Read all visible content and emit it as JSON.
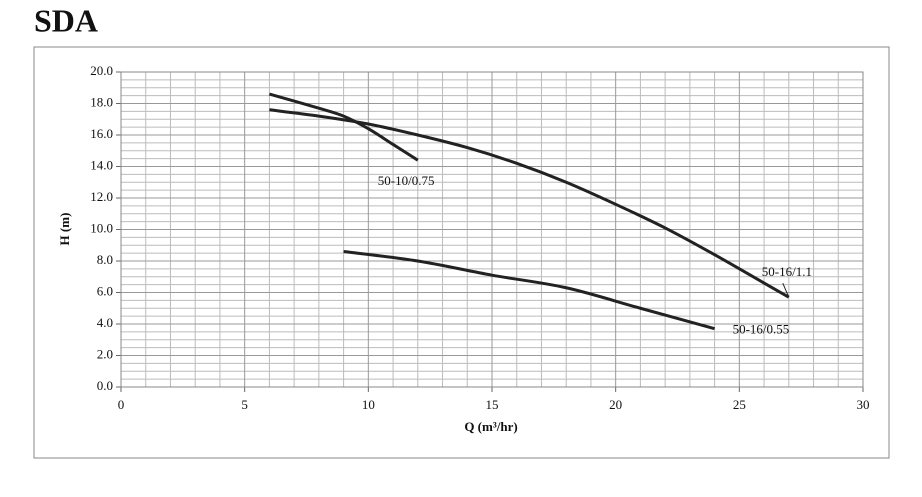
{
  "title": "SDA",
  "chart_data": {
    "type": "line",
    "xlabel": "Q (m³/hr)",
    "ylabel": "H (m)",
    "xlim": [
      0,
      30
    ],
    "xticks": [
      0,
      5,
      10,
      15,
      20,
      25,
      30
    ],
    "ylim": [
      0,
      20
    ],
    "yticks": [
      {
        "value": 0,
        "label": "0.0"
      },
      {
        "value": 2,
        "label": "2.0"
      },
      {
        "value": 4,
        "label": "4.0"
      },
      {
        "value": 6,
        "label": "6.0"
      },
      {
        "value": 8,
        "label": "8.0"
      },
      {
        "value": 10,
        "label": "10.0"
      },
      {
        "value": 12,
        "label": "12.0"
      },
      {
        "value": 14,
        "label": "14.0"
      },
      {
        "value": 16,
        "label": "16.0"
      },
      {
        "value": 18,
        "label": "18.0"
      },
      {
        "value": 20,
        "label": "20.0"
      }
    ],
    "grid": true,
    "series": [
      {
        "name": "50-10/0.75",
        "color": "#222222",
        "x": [
          6,
          8,
          9,
          10,
          11,
          12
        ],
        "values": [
          18.6,
          17.7,
          17.2,
          16.4,
          15.4,
          14.4
        ]
      },
      {
        "name": "50-16/1.1",
        "color": "#222222",
        "x": [
          6,
          8,
          10,
          12,
          14,
          16,
          18,
          20,
          22,
          24,
          26,
          27
        ],
        "values": [
          17.6,
          17.2,
          16.7,
          16.0,
          15.2,
          14.2,
          13.0,
          11.6,
          10.1,
          8.4,
          6.6,
          5.7
        ]
      },
      {
        "name": "50-16/0.55",
        "color": "#222222",
        "x": [
          9,
          12,
          15,
          18,
          21,
          24
        ],
        "values": [
          8.6,
          8.0,
          7.1,
          6.3,
          5.0,
          3.7
        ]
      }
    ]
  }
}
